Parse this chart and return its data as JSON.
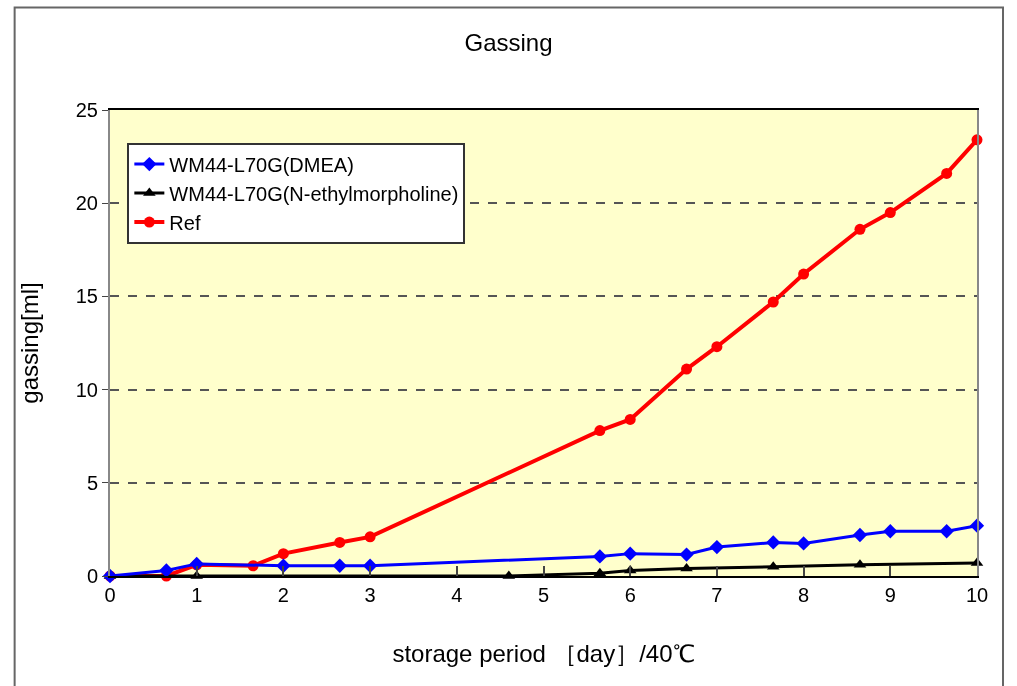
{
  "chart_data": {
    "type": "line",
    "title": "Gassing",
    "xlabel": "storage period ［day］/40℃",
    "ylabel": "gassing[ml]",
    "xlim": [
      0,
      10
    ],
    "xticks": [
      0,
      1,
      2,
      3,
      4,
      5,
      6,
      7,
      8,
      9,
      10
    ],
    "ylim": [
      0,
      25
    ],
    "yticks": [
      0,
      5,
      10,
      15,
      20,
      25
    ],
    "grid": "y",
    "legend": "top left",
    "series": [
      {
        "name": "WM44-L70G(DMEA)",
        "color": "#0000ff",
        "marker": "diamond",
        "x": [
          0,
          0.65,
          1,
          2,
          2.65,
          3,
          5.65,
          6,
          6.65,
          7,
          7.65,
          8,
          8.65,
          9,
          9.65,
          10
        ],
        "values": [
          0,
          0.3,
          0.65,
          0.55,
          0.55,
          0.55,
          1.05,
          1.2,
          1.15,
          1.55,
          1.8,
          1.75,
          2.2,
          2.4,
          2.4,
          2.7
        ]
      },
      {
        "name": "WM44-L70G(N-ethylmorpholine)",
        "color": "#000000",
        "marker": "triangle",
        "x": [
          0,
          1,
          4.6,
          5.65,
          6,
          6.65,
          7.65,
          8.65,
          10
        ],
        "values": [
          0,
          0,
          0,
          0.15,
          0.3,
          0.4,
          0.5,
          0.6,
          0.7
        ]
      },
      {
        "name": "Ref",
        "color": "#ff0000",
        "marker": "circle",
        "x": [
          0,
          0.65,
          1,
          1.65,
          2,
          2.65,
          3,
          5.65,
          6,
          6.65,
          7,
          7.65,
          8,
          8.65,
          9,
          9.65,
          10
        ],
        "values": [
          0,
          0,
          0.6,
          0.55,
          1.2,
          1.8,
          2.1,
          7.8,
          8.4,
          11.1,
          12.3,
          14.7,
          16.2,
          18.6,
          19.5,
          21.6,
          23.4
        ]
      }
    ]
  }
}
